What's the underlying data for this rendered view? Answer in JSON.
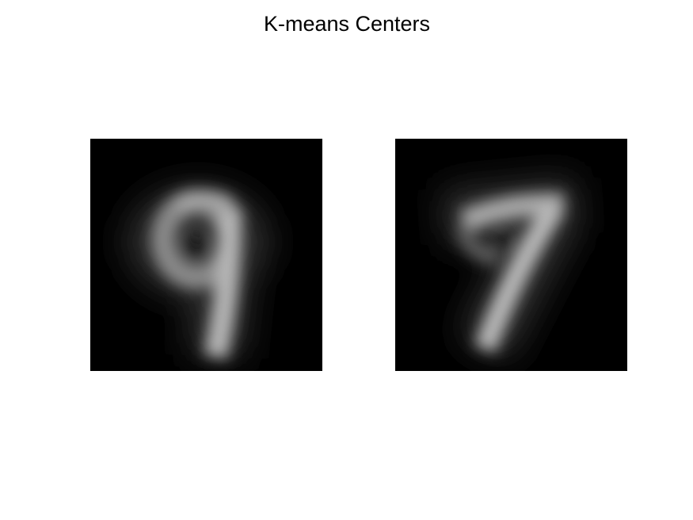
{
  "title": "K-means Centers"
}
